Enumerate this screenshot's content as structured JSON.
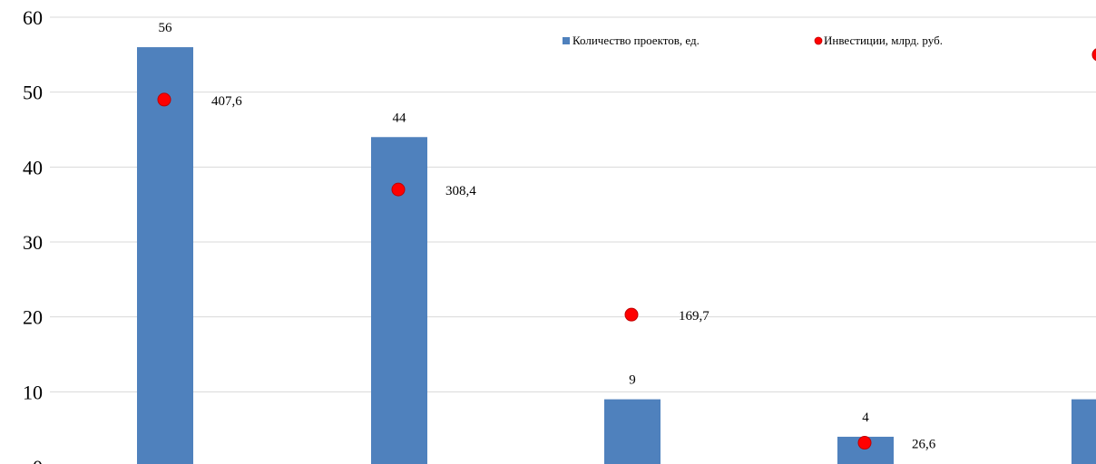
{
  "chart_data": {
    "type": "bar",
    "categories": [
      "",
      "",
      "",
      "",
      ""
    ],
    "series": [
      {
        "name": "Количество проектов, ед.",
        "kind": "bar",
        "color": "#4f81bd",
        "values": [
          56,
          44,
          9,
          4,
          9
        ],
        "labels": [
          "56",
          "44",
          "9",
          "4",
          ""
        ]
      },
      {
        "name": "Инвестиции, млрд. руб.",
        "kind": "scatter",
        "color": "#ff0000",
        "values": [
          49,
          37,
          20.3,
          3.2,
          55
        ],
        "labels": [
          "407,6",
          "308,4",
          "169,7",
          "26,6",
          ""
        ]
      }
    ],
    "y_ticks": [
      "0",
      "10",
      "20",
      "30",
      "40",
      "50",
      "60"
    ],
    "ylim": [
      0,
      60
    ],
    "grid": true,
    "legend_position": "top-right",
    "title": "",
    "xlabel": "",
    "ylabel": ""
  }
}
